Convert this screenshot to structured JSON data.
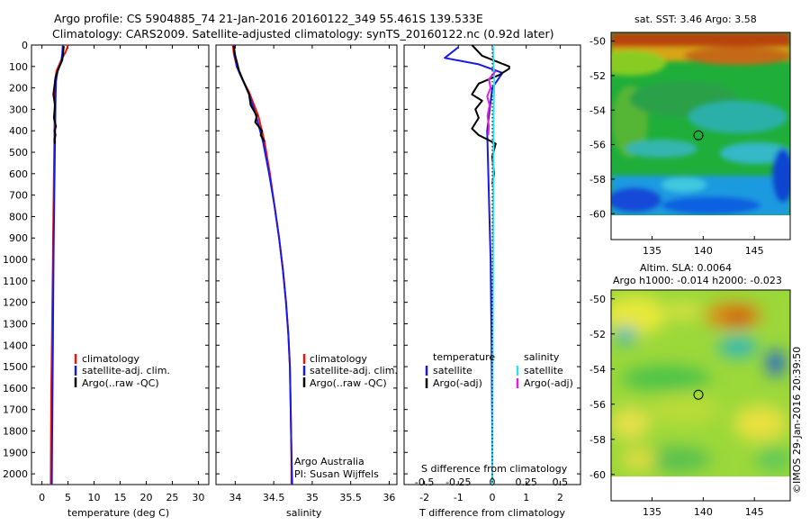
{
  "title": {
    "line1": "Argo profile: CS 5904885_74 21-Jan-2016 20160122_349 55.461S 139.533E",
    "line2": "Climatology: CARS2009. Satellite-adjusted climatology: synTS_20160122.nc (0.92d later)"
  },
  "credit": {
    "line1": "Argo Australia",
    "line2": "PI: Susan Wijffels"
  },
  "watermark": "©IMOS 29-Jan-2016 20:39:50",
  "colors": {
    "climatology": "#e8170c",
    "satellite": "#1919e6",
    "argo": "#000000",
    "salinity_satellite": "#33e0ee",
    "salinity_argo": "#e020e0"
  },
  "chart_data": [
    {
      "type": "line",
      "id": "temperature-profile",
      "xlabel": "temperature (deg C)",
      "ylabel": "",
      "xlim": [
        -2,
        32
      ],
      "ylim": [
        2050,
        0
      ],
      "xticks": [
        "0",
        "5",
        "10",
        "15",
        "20",
        "25",
        "30"
      ],
      "yticks": [
        "0",
        "100",
        "200",
        "300",
        "400",
        "500",
        "600",
        "700",
        "800",
        "900",
        "1000",
        "1100",
        "1200",
        "1300",
        "1400",
        "1500",
        "1600",
        "1700",
        "1800",
        "1900",
        "2000"
      ],
      "legend": [
        "climatology",
        "satellite-adj. clim.",
        "Argo(..raw -QC)"
      ],
      "series": [
        {
          "name": "climatology",
          "color_key": "climatology",
          "x": [
            5.0,
            4.6,
            3.7,
            2.8,
            2.5,
            2.45,
            2.45,
            2.4,
            2.35,
            2.3,
            2.25,
            2.2,
            2.15,
            2.1,
            2.05,
            2.0,
            1.95,
            1.9,
            1.85,
            1.8,
            1.75,
            1.7
          ],
          "y": [
            0,
            30,
            70,
            120,
            170,
            250,
            300,
            400,
            500,
            600,
            700,
            800,
            900,
            1000,
            1100,
            1200,
            1300,
            1400,
            1500,
            1600,
            1800,
            2050
          ]
        },
        {
          "name": "satellite-adj. clim.",
          "color_key": "satellite",
          "x": [
            4.0,
            3.9,
            3.7,
            3.0,
            2.7,
            2.6,
            2.55,
            2.5,
            2.45,
            2.4,
            2.35,
            2.3,
            2.25,
            2.2,
            2.15,
            2.1,
            2.05,
            2.0,
            1.95,
            1.9
          ],
          "y": [
            0,
            40,
            80,
            120,
            170,
            250,
            350,
            450,
            550,
            650,
            750,
            850,
            950,
            1100,
            1250,
            1400,
            1550,
            1700,
            1850,
            2050
          ]
        },
        {
          "name": "Argo(..raw -QC)",
          "color_key": "argo",
          "x": [
            4.2,
            4.1,
            3.9,
            3.2,
            2.6,
            2.4,
            2.2,
            2.5,
            2.3,
            2.7,
            2.4,
            2.6,
            2.4,
            2.5
          ],
          "y": [
            5,
            30,
            70,
            110,
            150,
            190,
            230,
            280,
            340,
            380,
            400,
            420,
            440,
            460
          ]
        }
      ]
    },
    {
      "type": "line",
      "id": "salinity-profile",
      "xlabel": "salinity",
      "ylabel": "",
      "xlim": [
        33.75,
        36.1
      ],
      "ylim": [
        2050,
        0
      ],
      "xticks": [
        "34",
        "34.5",
        "35",
        "35.5",
        "36"
      ],
      "legend": [
        "climatology",
        "satellite-adj. clim.",
        "Argo(..raw -QC)"
      ],
      "series": [
        {
          "name": "climatology",
          "color_key": "climatology",
          "x": [
            33.97,
            33.98,
            34.02,
            34.08,
            34.18,
            34.3,
            34.38,
            34.45,
            34.51,
            34.57,
            34.62,
            34.66,
            34.69,
            34.71,
            34.72,
            34.73,
            34.73
          ],
          "y": [
            0,
            40,
            100,
            150,
            220,
            330,
            450,
            600,
            750,
            900,
            1050,
            1200,
            1350,
            1500,
            1700,
            1900,
            2050
          ]
        },
        {
          "name": "satellite-adj. clim.",
          "color_key": "satellite",
          "x": [
            33.98,
            33.99,
            34.02,
            34.08,
            34.17,
            34.27,
            34.36,
            34.44,
            34.51,
            34.57,
            34.62,
            34.66,
            34.69,
            34.71,
            34.72,
            34.73,
            34.74
          ],
          "y": [
            0,
            40,
            100,
            150,
            220,
            330,
            450,
            600,
            750,
            900,
            1050,
            1200,
            1350,
            1500,
            1700,
            1900,
            2050
          ]
        },
        {
          "name": "Argo(..raw -QC)",
          "color_key": "argo",
          "x": [
            33.98,
            34.0,
            34.05,
            34.12,
            34.18,
            34.2,
            34.28,
            34.26,
            34.35,
            34.33,
            34.38
          ],
          "y": [
            5,
            50,
            120,
            180,
            230,
            280,
            330,
            360,
            400,
            420,
            450
          ]
        }
      ]
    },
    {
      "type": "line",
      "id": "difference-profile",
      "xlabel": "T difference from climatology",
      "xlabel_top": "S difference from climatology",
      "xlim": [
        -2.6,
        2.6
      ],
      "ylim": [
        2050,
        0
      ],
      "xticks": [
        "-2",
        "-1",
        "0",
        "1",
        "2"
      ],
      "xticks_top": [
        "-0.5",
        "-0.25",
        "0",
        "0.25",
        "0.5"
      ],
      "legend_titles": [
        "temperature",
        "salinity"
      ],
      "legend": [
        "satellite",
        "Argo(-adj)",
        "satellite",
        "Argo(-adj)"
      ],
      "series": [
        {
          "name": "T satellite",
          "color_key": "satellite",
          "x": [
            -1.0,
            -1.4,
            -0.4,
            0.3,
            0.0,
            -0.15,
            -0.1,
            -0.05,
            -0.02,
            0.0,
            0.0
          ],
          "y": [
            10,
            60,
            90,
            130,
            200,
            400,
            700,
            1000,
            1400,
            1800,
            2050
          ]
        },
        {
          "name": "T Argo(-adj)",
          "color_key": "argo",
          "x": [
            -0.6,
            -0.3,
            0.5,
            0.5,
            0.2,
            -0.4,
            -0.6,
            -0.3,
            -0.5,
            -0.4,
            -0.6,
            -0.4,
            0.1,
            0.0,
            0.05,
            0.0
          ],
          "y": [
            0,
            50,
            100,
            110,
            140,
            180,
            230,
            260,
            300,
            340,
            390,
            420,
            460,
            520,
            600,
            650
          ]
        },
        {
          "name": "S satellite",
          "color_key": "salinity_satellite",
          "x": [
            0.02,
            0.03,
            0.06,
            0.04,
            0.03,
            0.02,
            0.01,
            0.0
          ],
          "y": [
            0,
            80,
            150,
            300,
            600,
            1000,
            1500,
            2050
          ]
        },
        {
          "name": "S Argo(-adj)",
          "color_key": "salinity_argo",
          "x": [
            0.1,
            -0.1,
            -0.05,
            -0.15,
            -0.08,
            -0.14,
            -0.1,
            -0.12
          ],
          "y": [
            120,
            160,
            200,
            240,
            280,
            330,
            380,
            420
          ]
        }
      ]
    },
    {
      "type": "heatmap",
      "id": "sst-map",
      "title": "sat. SST: 3.46 Argo: 3.58",
      "xlim": [
        131,
        148.5
      ],
      "ylim": [
        -61.5,
        -49.5
      ],
      "xticks": [
        "135",
        "140",
        "145"
      ],
      "yticks": [
        "-50",
        "-52",
        "-54",
        "-56",
        "-58",
        "-60"
      ],
      "marker": {
        "lon": 139.533,
        "lat": -55.461
      }
    },
    {
      "type": "heatmap",
      "id": "sla-map",
      "title": "Altim. SLA: 0.0064",
      "subtitle": "Argo h1000: -0.014 h2000: -0.023",
      "xlim": [
        131,
        148.5
      ],
      "ylim": [
        -61.5,
        -49.5
      ],
      "xticks": [
        "135",
        "140",
        "145"
      ],
      "yticks": [
        "-50",
        "-52",
        "-54",
        "-56",
        "-58",
        "-60"
      ],
      "marker": {
        "lon": 139.533,
        "lat": -55.461
      }
    }
  ]
}
